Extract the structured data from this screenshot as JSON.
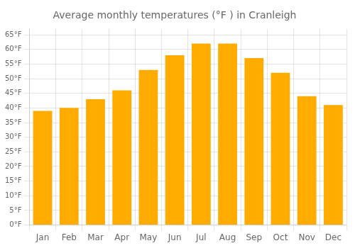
{
  "chart_data": {
    "type": "bar",
    "title": "Average monthly temperatures (°F ) in Cranleigh",
    "categories": [
      "Jan",
      "Feb",
      "Mar",
      "Apr",
      "May",
      "Jun",
      "Jul",
      "Aug",
      "Sep",
      "Oct",
      "Nov",
      "Dec"
    ],
    "values": [
      39,
      40,
      43,
      46,
      53,
      58,
      62,
      62,
      57,
      52,
      44,
      41
    ],
    "color": "#FFAB00",
    "ylim": [
      0,
      67
    ],
    "yticks": [
      {
        "value": 0,
        "label": "0°F"
      },
      {
        "value": 5,
        "label": "5°F"
      },
      {
        "value": 10,
        "label": "10°F"
      },
      {
        "value": 15,
        "label": "15°F"
      },
      {
        "value": 20,
        "label": "20°F"
      },
      {
        "value": 25,
        "label": "25°F"
      },
      {
        "value": 30,
        "label": "30°F"
      },
      {
        "value": 35,
        "label": "35°F"
      },
      {
        "value": 40,
        "label": "40°F"
      },
      {
        "value": 45,
        "label": "45°F"
      },
      {
        "value": 50,
        "label": "50°F"
      },
      {
        "value": 55,
        "label": "55°F"
      },
      {
        "value": 60,
        "label": "60°F"
      },
      {
        "value": 65,
        "label": "65°F"
      }
    ],
    "grid": true
  }
}
